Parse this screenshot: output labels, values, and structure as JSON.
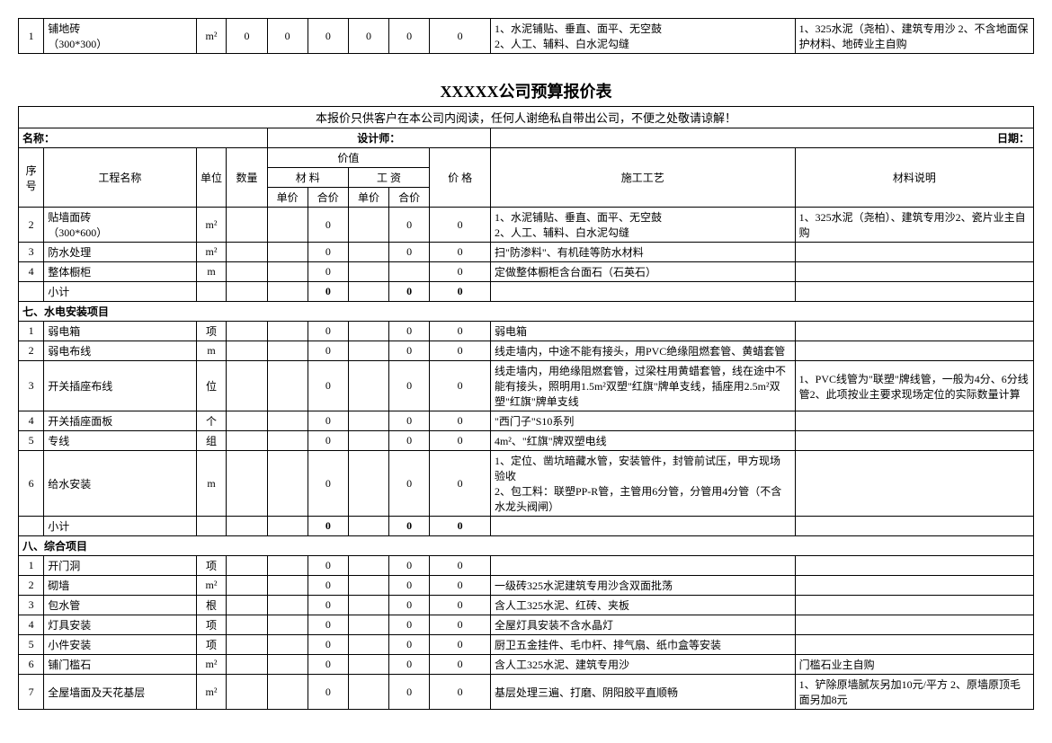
{
  "topTable": {
    "rows": [
      {
        "seq": "1",
        "name": "铺地砖\n（300*300）",
        "unit": "m²",
        "qty": "0",
        "matUp": "0",
        "matTot": "0",
        "labUp": "0",
        "labTot": "0",
        "price": "0",
        "craft": "1、水泥铺贴、垂直、面平、无空鼓\n2、人工、辅料、白水泥勾缝",
        "desc": "1、325水泥（尧柏）、建筑专用沙 2、不含地面保护材料、地砖业主自购"
      }
    ]
  },
  "main": {
    "title": "XXXXX公司预算报价表",
    "notice": "本报价只供客户在本公司内阅读，任何人谢绝私自带出公司，不便之处敬请谅解！",
    "header": {
      "nameLabel": "名称：",
      "designerLabel": "设计师：",
      "dateLabel": "日期："
    },
    "cols": {
      "seq": "序号",
      "name": "工程名称",
      "unit": "单位",
      "qty": "数量",
      "value": "价值",
      "material": "材 料",
      "labor": "工 资",
      "unitPrice": "单价",
      "total": "合价",
      "price": "价 格",
      "craft": "施工工艺",
      "desc": "材料说明"
    },
    "rows1": [
      {
        "seq": "2",
        "name": "贴墙面砖\n（300*600）",
        "unit": "m²",
        "qty": "",
        "matUp": "",
        "matTot": "0",
        "labUp": "",
        "labTot": "0",
        "price": "0",
        "craft": "1、水泥铺贴、垂直、面平、无空鼓\n2、人工、辅料、白水泥勾缝",
        "desc": "1、325水泥（尧柏）、建筑专用沙2、瓷片业主自购"
      },
      {
        "seq": "3",
        "name": "防水处理",
        "unit": "m²",
        "qty": "",
        "matUp": "",
        "matTot": "0",
        "labUp": "",
        "labTot": "0",
        "price": "0",
        "craft": "扫\"防渗料\"、有机硅等防水材料",
        "desc": ""
      },
      {
        "seq": "4",
        "name": "整体橱柜",
        "unit": "m",
        "qty": "",
        "matUp": "",
        "matTot": "0",
        "labUp": "",
        "labTot": "",
        "price": "0",
        "craft": "定做整体橱柜含台面石（石英石）",
        "desc": ""
      }
    ],
    "subtotal1": {
      "label": "小计",
      "matTot": "0",
      "labTot": "0",
      "price": "0"
    },
    "section7": "七、水电安装项目",
    "rows2": [
      {
        "seq": "1",
        "name": "弱电箱",
        "unit": "项",
        "qty": "",
        "matUp": "",
        "matTot": "0",
        "labUp": "",
        "labTot": "0",
        "price": "0",
        "craft": "弱电箱",
        "desc": ""
      },
      {
        "seq": "2",
        "name": "弱电布线",
        "unit": "m",
        "qty": "",
        "matUp": "",
        "matTot": "0",
        "labUp": "",
        "labTot": "0",
        "price": "0",
        "craft": "线走墙内，中途不能有接头，用PVC绝缘阻燃套管、黄蜡套管",
        "desc": ""
      },
      {
        "seq": "3",
        "name": "开关插座布线",
        "unit": "位",
        "qty": "",
        "matUp": "",
        "matTot": "0",
        "labUp": "",
        "labTot": "0",
        "price": "0",
        "craft": "线走墙内，用绝缘阻燃套管，过梁柱用黄蜡套管，线在途中不能有接头，照明用1.5m²双塑\"红旗\"牌单支线，插座用2.5m²双塑\"红旗\"牌单支线",
        "desc": "1、PVC线管为\"联塑\"牌线管，一般为4分、6分线管2、此项按业主要求现场定位的实际数量计算"
      },
      {
        "seq": "4",
        "name": "开关插座面板",
        "unit": "个",
        "qty": "",
        "matUp": "",
        "matTot": "0",
        "labUp": "",
        "labTot": "0",
        "price": "0",
        "craft": "\"西门子\"S10系列",
        "desc": ""
      },
      {
        "seq": "5",
        "name": "专线",
        "unit": "组",
        "qty": "",
        "matUp": "",
        "matTot": "0",
        "labUp": "",
        "labTot": "0",
        "price": "0",
        "craft": "4m²、\"红旗\"牌双塑电线",
        "desc": ""
      },
      {
        "seq": "6",
        "name": "给水安装",
        "unit": "m",
        "qty": "",
        "matUp": "",
        "matTot": "0",
        "labUp": "",
        "labTot": "0",
        "price": "0",
        "craft": "1、定位、凿坑暗藏水管，安装管件，封管前试压，甲方现场验收\n2、包工料：联塑PP-R管，主管用6分管，分管用4分管（不含水龙头阀闸）",
        "desc": ""
      }
    ],
    "subtotal2": {
      "label": "小计",
      "matTot": "0",
      "labTot": "0",
      "price": "0"
    },
    "section8": "八、综合项目",
    "rows3": [
      {
        "seq": "1",
        "name": "开门洞",
        "unit": "项",
        "qty": "",
        "matUp": "",
        "matTot": "0",
        "labUp": "",
        "labTot": "0",
        "price": "0",
        "craft": "",
        "desc": ""
      },
      {
        "seq": "2",
        "name": "砌墙",
        "unit": "m²",
        "qty": "",
        "matUp": "",
        "matTot": "0",
        "labUp": "",
        "labTot": "0",
        "price": "0",
        "craft": "一级砖325水泥建筑专用沙含双面批荡",
        "desc": ""
      },
      {
        "seq": "3",
        "name": "包水管",
        "unit": "根",
        "qty": "",
        "matUp": "",
        "matTot": "0",
        "labUp": "",
        "labTot": "0",
        "price": "0",
        "craft": "含人工325水泥、红砖、夹板",
        "desc": ""
      },
      {
        "seq": "4",
        "name": "灯具安装",
        "unit": "项",
        "qty": "",
        "matUp": "",
        "matTot": "0",
        "labUp": "",
        "labTot": "0",
        "price": "0",
        "craft": "全屋灯具安装不含水晶灯",
        "desc": ""
      },
      {
        "seq": "5",
        "name": "小件安装",
        "unit": "项",
        "qty": "",
        "matUp": "",
        "matTot": "0",
        "labUp": "",
        "labTot": "0",
        "price": "0",
        "craft": "厨卫五金挂件、毛巾杆、排气扇、纸巾盒等安装",
        "desc": ""
      },
      {
        "seq": "6",
        "name": "铺门槛石",
        "unit": "m²",
        "qty": "",
        "matUp": "",
        "matTot": "0",
        "labUp": "",
        "labTot": "0",
        "price": "0",
        "craft": "含人工325水泥、建筑专用沙",
        "desc": "门槛石业主自购"
      },
      {
        "seq": "7",
        "name": "全屋墙面及天花基层",
        "unit": "m²",
        "qty": "",
        "matUp": "",
        "matTot": "0",
        "labUp": "",
        "labTot": "0",
        "price": "0",
        "craft": "基层处理三遍、打磨、阴阳胶平直顺畅",
        "desc": "1、铲除原墙腻灰另加10元/平方   2、原墙原顶毛面另加8元"
      }
    ]
  }
}
